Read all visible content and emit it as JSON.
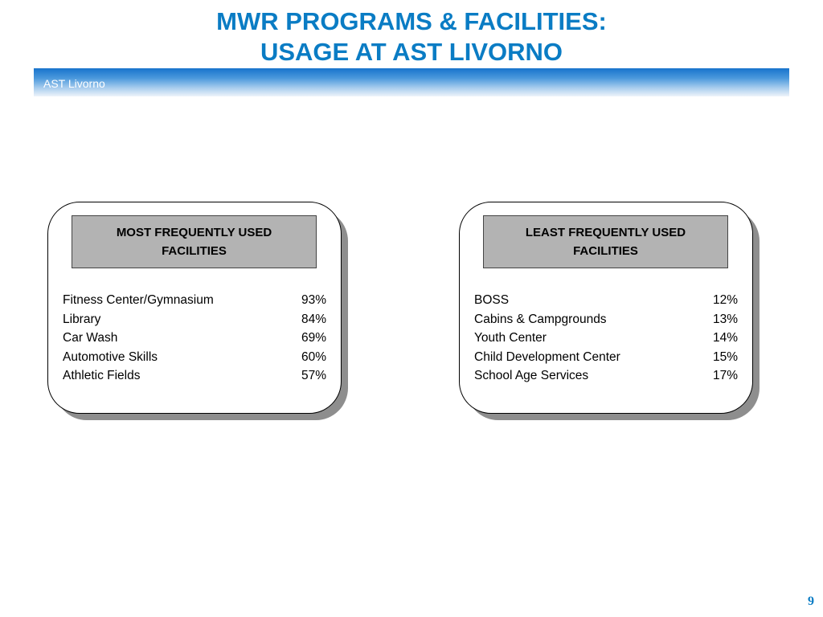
{
  "title": {
    "line1": "MWR PROGRAMS & FACILITIES:",
    "line2": "USAGE AT AST LIVORNO"
  },
  "band_label": "AST Livorno",
  "colors": {
    "title": "#0a7cc4",
    "band_start": "#1874cc",
    "header_fill": "#b3b3b3",
    "shadow": "#8e8e8e"
  },
  "panels": [
    {
      "header": "MOST FREQUENTLY USED FACILITIES",
      "rows": [
        {
          "name": "Fitness Center/Gymnasium",
          "value": "93%"
        },
        {
          "name": "Library",
          "value": "84%"
        },
        {
          "name": "Car Wash",
          "value": "69%"
        },
        {
          "name": "Automotive Skills",
          "value": "60%"
        },
        {
          "name": "Athletic Fields",
          "value": "57%"
        }
      ]
    },
    {
      "header": "LEAST FREQUENTLY USED FACILITIES",
      "rows": [
        {
          "name": "BOSS",
          "value": "12%"
        },
        {
          "name": "Cabins & Campgrounds",
          "value": "13%"
        },
        {
          "name": "Youth Center",
          "value": "14%"
        },
        {
          "name": "Child Development Center",
          "value": "15%"
        },
        {
          "name": "School Age Services",
          "value": "17%"
        }
      ]
    }
  ],
  "page_number": "9"
}
